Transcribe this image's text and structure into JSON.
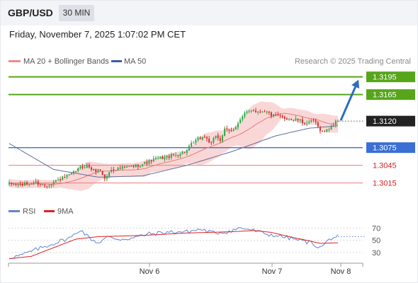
{
  "header": {
    "pair": "GBP/USD",
    "timeframe": "30 MIN",
    "datetime": "Friday, November 7, 2025 1:07:02 PM CET"
  },
  "legend": {
    "ma20_label": "MA 20 + Bollinger Bands",
    "ma50_label": "MA 50",
    "credit": "Research © 2025 Trading Central",
    "rsi_label": "RSI",
    "rsi_ma_label": "9MA"
  },
  "colors": {
    "bull_candle": "#2eaa4a",
    "bear_candle": "#d63030",
    "bollinger_fill": "#f8c9c9",
    "ma20": "#e87878",
    "ma50": "#5a6e9a",
    "resistance_green": "#56a51a",
    "pivot_blue": "#3b6fd3",
    "support_red": "#ec7a7a",
    "current_price_bg": "#222222",
    "forecast_arrow": "#2f6bbf",
    "rsi": "#5b86d6",
    "rsi_ma": "#e02020"
  },
  "chart_data": [
    {
      "type": "candlestick",
      "title": "GBP/USD",
      "timeframe": "30 MIN",
      "y_range": [
        1.2975,
        1.3215
      ],
      "x_ticks": [
        "Nov 6",
        "Nov 7",
        "Nov 8"
      ],
      "current_price": "1.3120",
      "levels": [
        {
          "value": 1.3195,
          "label": "1.3195",
          "kind": "resistance",
          "style": "green"
        },
        {
          "value": 1.3165,
          "label": "1.3165",
          "kind": "resistance",
          "style": "green"
        },
        {
          "value": 1.3075,
          "label": "1.3075",
          "kind": "pivot",
          "style": "blue"
        },
        {
          "value": 1.3045,
          "label": "1.3045",
          "kind": "support",
          "style": "red"
        },
        {
          "value": 1.3015,
          "label": "1.3015",
          "kind": "support",
          "style": "red"
        }
      ],
      "forecast": {
        "from": 1.312,
        "to": 1.3195,
        "direction": "up"
      },
      "close_anchors": [
        [
          0,
          1.3013
        ],
        [
          6,
          1.3012
        ],
        [
          12,
          1.3016
        ],
        [
          16,
          1.301
        ],
        [
          22,
          1.302
        ],
        [
          28,
          1.303
        ],
        [
          32,
          1.3041
        ],
        [
          35,
          1.3045
        ],
        [
          38,
          1.3036
        ],
        [
          41,
          1.3037
        ],
        [
          43,
          1.3022
        ],
        [
          46,
          1.3038
        ],
        [
          50,
          1.304
        ],
        [
          55,
          1.3043
        ],
        [
          60,
          1.3047
        ],
        [
          66,
          1.3056
        ],
        [
          72,
          1.306
        ],
        [
          77,
          1.3065
        ],
        [
          80,
          1.307
        ],
        [
          82,
          1.308
        ],
        [
          85,
          1.309
        ],
        [
          88,
          1.3094
        ],
        [
          91,
          1.3081
        ],
        [
          93,
          1.3096
        ],
        [
          95,
          1.3088
        ],
        [
          97,
          1.3105
        ],
        [
          100,
          1.3102
        ],
        [
          103,
          1.3117
        ],
        [
          106,
          1.3132
        ],
        [
          109,
          1.314
        ],
        [
          112,
          1.3136
        ],
        [
          115,
          1.3138
        ],
        [
          118,
          1.313
        ],
        [
          121,
          1.3128
        ],
        [
          124,
          1.3125
        ],
        [
          127,
          1.3123
        ],
        [
          130,
          1.3122
        ],
        [
          132,
          1.3118
        ],
        [
          135,
          1.3116
        ],
        [
          137,
          1.3122
        ],
        [
          139,
          1.311
        ],
        [
          141,
          1.3102
        ],
        [
          143,
          1.3104
        ],
        [
          145,
          1.3112
        ],
        [
          147,
          1.3118
        ],
        [
          148,
          1.312
        ]
      ],
      "ma50_anchors": [
        [
          0,
          1.3082
        ],
        [
          20,
          1.3038
        ],
        [
          40,
          1.3025
        ],
        [
          60,
          1.3027
        ],
        [
          80,
          1.3045
        ],
        [
          100,
          1.3068
        ],
        [
          120,
          1.3095
        ],
        [
          135,
          1.3108
        ],
        [
          148,
          1.3112
        ]
      ],
      "candle_count": 149
    },
    {
      "type": "line",
      "title": "RSI",
      "y_range": [
        15,
        82
      ],
      "y_ticks": [
        70,
        50,
        30
      ],
      "series": [
        {
          "name": "RSI",
          "anchors": [
            [
              0,
              22
            ],
            [
              5,
              25
            ],
            [
              10,
              32
            ],
            [
              20,
              45
            ],
            [
              28,
              55
            ],
            [
              32,
              68
            ],
            [
              36,
              54
            ],
            [
              40,
              46
            ],
            [
              44,
              55
            ],
            [
              50,
              52
            ],
            [
              56,
              54
            ],
            [
              62,
              60
            ],
            [
              68,
              62
            ],
            [
              74,
              64
            ],
            [
              80,
              64
            ],
            [
              86,
              68
            ],
            [
              92,
              62
            ],
            [
              98,
              64
            ],
            [
              104,
              70
            ],
            [
              108,
              68
            ],
            [
              112,
              64
            ],
            [
              116,
              60
            ],
            [
              120,
              58
            ],
            [
              126,
              54
            ],
            [
              132,
              49
            ],
            [
              136,
              46
            ],
            [
              140,
              38
            ],
            [
              142,
              44
            ],
            [
              145,
              54
            ],
            [
              148,
              56
            ]
          ]
        },
        {
          "name": "9MA",
          "anchors": [
            [
              0,
              20
            ],
            [
              10,
              24
            ],
            [
              20,
              38
            ],
            [
              30,
              52
            ],
            [
              40,
              56
            ],
            [
              50,
              57
            ],
            [
              60,
              58
            ],
            [
              70,
              60
            ],
            [
              80,
              62
            ],
            [
              90,
              63
            ],
            [
              100,
              64
            ],
            [
              110,
              66
            ],
            [
              118,
              63
            ],
            [
              126,
              56
            ],
            [
              134,
              50
            ],
            [
              140,
              45
            ],
            [
              148,
              46
            ]
          ]
        }
      ],
      "rsi_projection": 56
    }
  ]
}
